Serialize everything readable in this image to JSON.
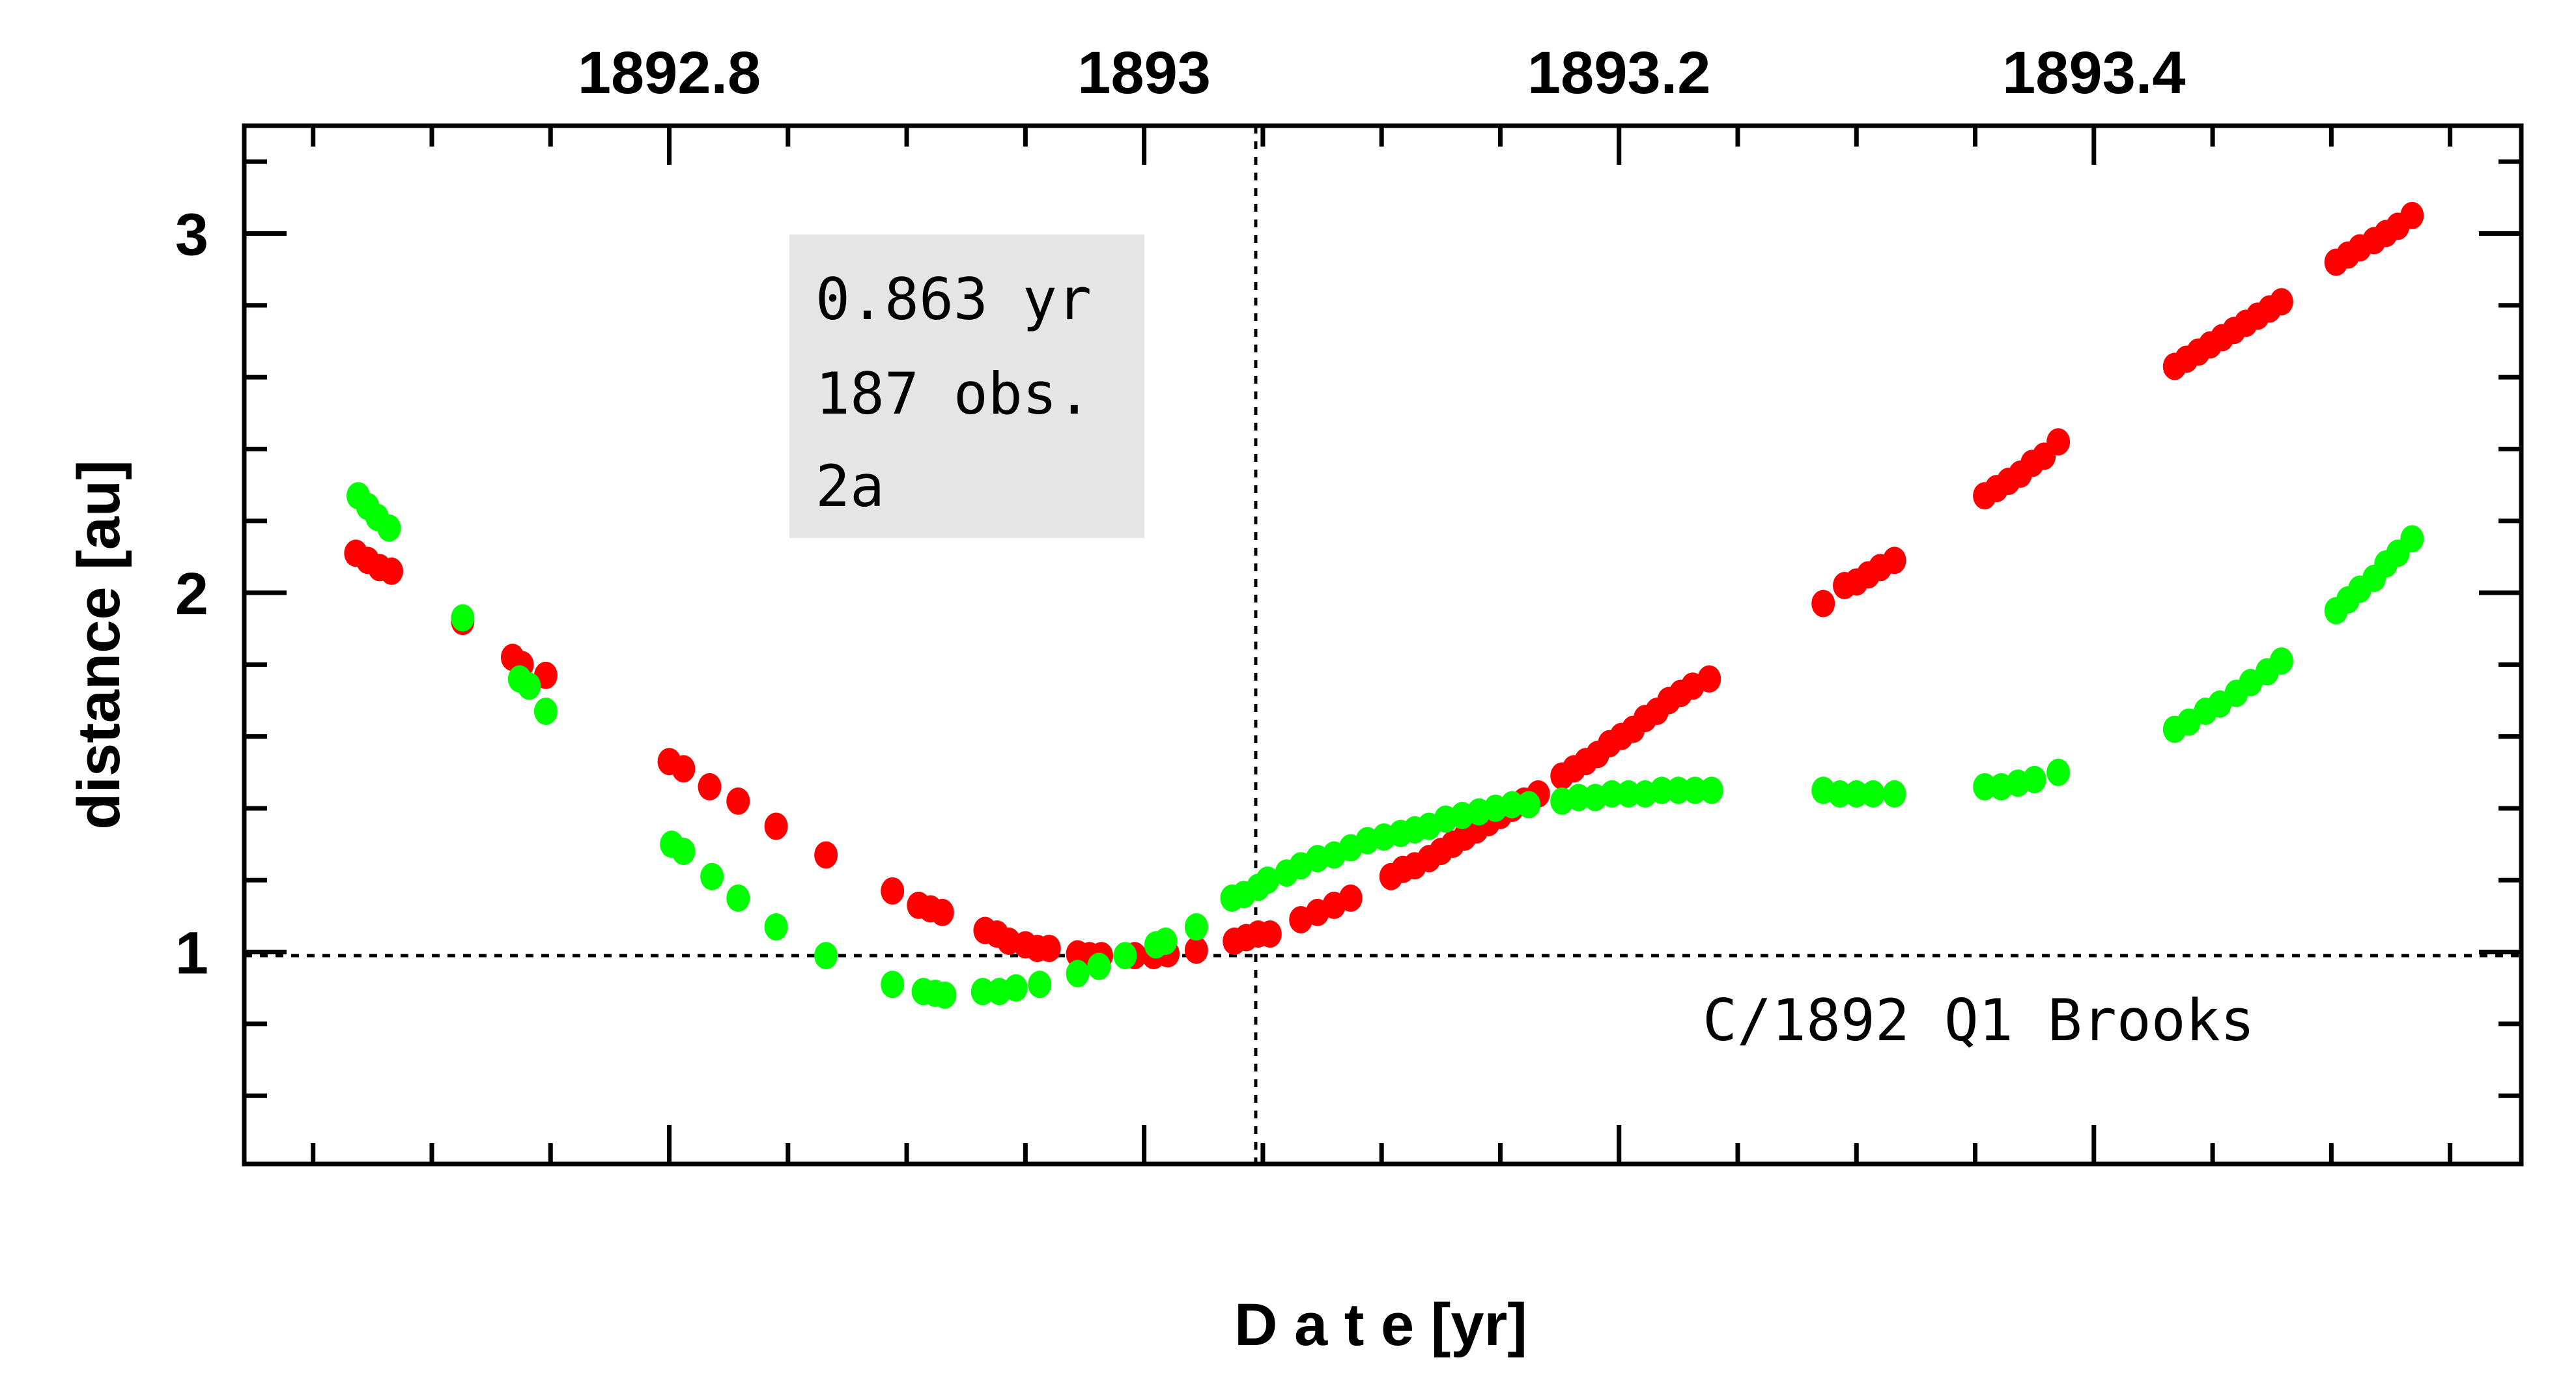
{
  "chart_data": {
    "type": "scatter",
    "title": "",
    "xlabel": "D a t e [yr]",
    "ylabel": "distance [au]",
    "xlim": [
      1892.621,
      1893.58
    ],
    "ylim": [
      0.41,
      3.3
    ],
    "x_ticks_top": [
      1892.8,
      1893,
      1893.2,
      1893.4
    ],
    "x_tick_labels_top": [
      "1892.8",
      "1893",
      "1893.2",
      "1893.4"
    ],
    "x_minor_step": 0.05,
    "y_ticks": [
      1,
      2,
      3
    ],
    "y_tick_labels": [
      "1",
      "2",
      "3"
    ],
    "y_minor_step": 0.2,
    "grid": false,
    "reference_lines": {
      "vertical_x": 1893.047,
      "horizontal_y": 0.99
    },
    "info_box": [
      "0.863 yr",
      "187 obs.",
      "2a"
    ],
    "object_label": "C/1892 Q1 Brooks",
    "series": [
      {
        "name": "red",
        "color": "#ff0000",
        "points": [
          [
            1892.668,
            2.11
          ],
          [
            1892.673,
            2.09
          ],
          [
            1892.678,
            2.07
          ],
          [
            1892.683,
            2.06
          ],
          [
            1892.713,
            1.92
          ],
          [
            1892.734,
            1.82
          ],
          [
            1892.738,
            1.8
          ],
          [
            1892.748,
            1.77
          ],
          [
            1892.8,
            1.53
          ],
          [
            1892.806,
            1.51
          ],
          [
            1892.817,
            1.46
          ],
          [
            1892.829,
            1.42
          ],
          [
            1892.845,
            1.35
          ],
          [
            1892.866,
            1.27
          ],
          [
            1892.894,
            1.17
          ],
          [
            1892.905,
            1.13
          ],
          [
            1892.91,
            1.12
          ],
          [
            1892.915,
            1.11
          ],
          [
            1892.933,
            1.06
          ],
          [
            1892.938,
            1.05
          ],
          [
            1892.943,
            1.03
          ],
          [
            1892.95,
            1.02
          ],
          [
            1892.955,
            1.01
          ],
          [
            1892.96,
            1.01
          ],
          [
            1892.972,
            0.995
          ],
          [
            1892.977,
            0.99
          ],
          [
            1892.982,
            0.99
          ],
          [
            1892.996,
            0.99
          ],
          [
            1893.004,
            0.99
          ],
          [
            1893.01,
            0.995
          ],
          [
            1893.022,
            1.005
          ],
          [
            1893.038,
            1.03
          ],
          [
            1893.043,
            1.04
          ],
          [
            1893.048,
            1.05
          ],
          [
            1893.053,
            1.05
          ],
          [
            1893.066,
            1.09
          ],
          [
            1893.073,
            1.11
          ],
          [
            1893.08,
            1.13
          ],
          [
            1893.087,
            1.15
          ],
          [
            1893.104,
            1.21
          ],
          [
            1893.109,
            1.23
          ],
          [
            1893.114,
            1.24
          ],
          [
            1893.12,
            1.26
          ],
          [
            1893.125,
            1.28
          ],
          [
            1893.13,
            1.3
          ],
          [
            1893.135,
            1.32
          ],
          [
            1893.14,
            1.34
          ],
          [
            1893.145,
            1.36
          ],
          [
            1893.15,
            1.38
          ],
          [
            1893.155,
            1.4
          ],
          [
            1893.16,
            1.42
          ],
          [
            1893.166,
            1.44
          ],
          [
            1893.176,
            1.49
          ],
          [
            1893.181,
            1.51
          ],
          [
            1893.186,
            1.53
          ],
          [
            1893.191,
            1.55
          ],
          [
            1893.196,
            1.58
          ],
          [
            1893.201,
            1.6
          ],
          [
            1893.206,
            1.62
          ],
          [
            1893.211,
            1.65
          ],
          [
            1893.216,
            1.67
          ],
          [
            1893.221,
            1.7
          ],
          [
            1893.226,
            1.72
          ],
          [
            1893.231,
            1.74
          ],
          [
            1893.238,
            1.76
          ],
          [
            1893.286,
            1.97
          ],
          [
            1893.295,
            2.02
          ],
          [
            1893.3,
            2.03
          ],
          [
            1893.305,
            2.05
          ],
          [
            1893.31,
            2.07
          ],
          [
            1893.316,
            2.09
          ],
          [
            1893.354,
            2.27
          ],
          [
            1893.359,
            2.29
          ],
          [
            1893.364,
            2.31
          ],
          [
            1893.369,
            2.33
          ],
          [
            1893.374,
            2.36
          ],
          [
            1893.379,
            2.38
          ],
          [
            1893.385,
            2.42
          ],
          [
            1893.434,
            2.63
          ],
          [
            1893.439,
            2.65
          ],
          [
            1893.444,
            2.67
          ],
          [
            1893.449,
            2.69
          ],
          [
            1893.454,
            2.71
          ],
          [
            1893.459,
            2.73
          ],
          [
            1893.464,
            2.75
          ],
          [
            1893.469,
            2.77
          ],
          [
            1893.474,
            2.79
          ],
          [
            1893.479,
            2.81
          ],
          [
            1893.502,
            2.92
          ],
          [
            1893.507,
            2.94
          ],
          [
            1893.512,
            2.96
          ],
          [
            1893.518,
            2.98
          ],
          [
            1893.523,
            3.0
          ],
          [
            1893.528,
            3.02
          ],
          [
            1893.534,
            3.05
          ]
        ]
      },
      {
        "name": "green",
        "color": "#00ff00",
        "points": [
          [
            1892.669,
            2.27
          ],
          [
            1892.673,
            2.24
          ],
          [
            1892.677,
            2.21
          ],
          [
            1892.682,
            2.18
          ],
          [
            1892.713,
            1.93
          ],
          [
            1892.737,
            1.76
          ],
          [
            1892.741,
            1.74
          ],
          [
            1892.748,
            1.67
          ],
          [
            1892.801,
            1.3
          ],
          [
            1892.806,
            1.28
          ],
          [
            1892.818,
            1.21
          ],
          [
            1892.829,
            1.15
          ],
          [
            1892.845,
            1.07
          ],
          [
            1892.866,
            0.99
          ],
          [
            1892.894,
            0.91
          ],
          [
            1892.907,
            0.89
          ],
          [
            1892.912,
            0.885
          ],
          [
            1892.916,
            0.88
          ],
          [
            1892.932,
            0.89
          ],
          [
            1892.939,
            0.89
          ],
          [
            1892.946,
            0.9
          ],
          [
            1892.956,
            0.91
          ],
          [
            1892.972,
            0.94
          ],
          [
            1892.981,
            0.96
          ],
          [
            1892.992,
            0.99
          ],
          [
            1893.005,
            1.02
          ],
          [
            1893.009,
            1.03
          ],
          [
            1893.022,
            1.07
          ],
          [
            1893.037,
            1.15
          ],
          [
            1893.042,
            1.16
          ],
          [
            1893.048,
            1.18
          ],
          [
            1893.052,
            1.2
          ],
          [
            1893.06,
            1.22
          ],
          [
            1893.066,
            1.24
          ],
          [
            1893.073,
            1.26
          ],
          [
            1893.08,
            1.27
          ],
          [
            1893.087,
            1.29
          ],
          [
            1893.094,
            1.31
          ],
          [
            1893.101,
            1.32
          ],
          [
            1893.108,
            1.33
          ],
          [
            1893.114,
            1.34
          ],
          [
            1893.12,
            1.35
          ],
          [
            1893.127,
            1.37
          ],
          [
            1893.134,
            1.38
          ],
          [
            1893.141,
            1.39
          ],
          [
            1893.148,
            1.4
          ],
          [
            1893.155,
            1.41
          ],
          [
            1893.162,
            1.41
          ],
          [
            1893.176,
            1.42
          ],
          [
            1893.183,
            1.43
          ],
          [
            1893.19,
            1.43
          ],
          [
            1893.197,
            1.44
          ],
          [
            1893.204,
            1.44
          ],
          [
            1893.211,
            1.44
          ],
          [
            1893.218,
            1.45
          ],
          [
            1893.225,
            1.45
          ],
          [
            1893.232,
            1.45
          ],
          [
            1893.239,
            1.45
          ],
          [
            1893.286,
            1.45
          ],
          [
            1893.293,
            1.44
          ],
          [
            1893.3,
            1.44
          ],
          [
            1893.307,
            1.44
          ],
          [
            1893.316,
            1.44
          ],
          [
            1893.354,
            1.46
          ],
          [
            1893.361,
            1.46
          ],
          [
            1893.368,
            1.47
          ],
          [
            1893.375,
            1.48
          ],
          [
            1893.385,
            1.5
          ],
          [
            1893.434,
            1.62
          ],
          [
            1893.44,
            1.64
          ],
          [
            1893.447,
            1.67
          ],
          [
            1893.453,
            1.69
          ],
          [
            1893.46,
            1.72
          ],
          [
            1893.466,
            1.75
          ],
          [
            1893.473,
            1.78
          ],
          [
            1893.479,
            1.81
          ],
          [
            1893.502,
            1.95
          ],
          [
            1893.507,
            1.98
          ],
          [
            1893.512,
            2.01
          ],
          [
            1893.518,
            2.04
          ],
          [
            1893.523,
            2.08
          ],
          [
            1893.528,
            2.11
          ],
          [
            1893.534,
            2.15
          ]
        ]
      }
    ]
  }
}
